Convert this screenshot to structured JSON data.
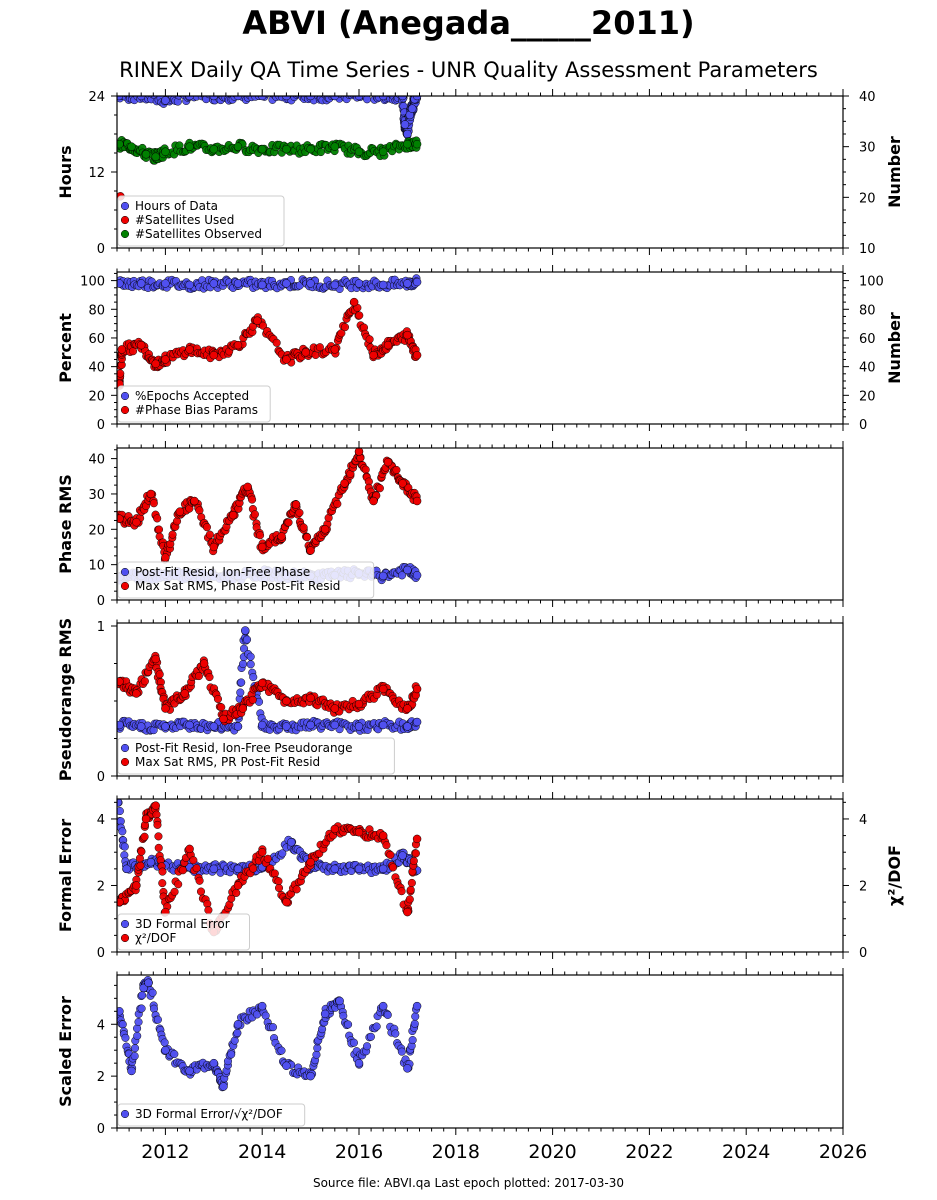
{
  "page": {
    "title": "ABVI (Anegada_____2011)",
    "subtitle": "RINEX Daily QA Time Series - UNR Quality Assessment Parameters",
    "footer": "Source file: ABVI.qa Last epoch plotted: 2017-03-30"
  },
  "colors": {
    "blue": "#5050f0",
    "red": "#ee0000",
    "green": "#008000"
  },
  "chart_data": [
    {
      "type": "scatter",
      "ylabel": "Hours",
      "ylabel_right": "Number",
      "ylim": [
        0,
        24
      ],
      "yticks": [
        0,
        12,
        24
      ],
      "ylim_right": [
        10,
        40
      ],
      "yticks_right": [
        10,
        20,
        30,
        40
      ],
      "xlim": [
        2011.0,
        2026.0
      ],
      "series": [
        {
          "name": "Hours of Data",
          "color": "blue",
          "axis": "left",
          "x": [
            2011.04,
            2011.5,
            2012.0,
            2012.5,
            2013.0,
            2013.5,
            2014.0,
            2014.5,
            2015.0,
            2015.5,
            2016.0,
            2016.5,
            2016.9,
            2016.95,
            2017.0,
            2017.05,
            2017.1,
            2017.15,
            2017.2
          ],
          "y": [
            24,
            24,
            23.3,
            24,
            24,
            24,
            24,
            24,
            24,
            24,
            24,
            24,
            24,
            19.5,
            18,
            21,
            22,
            23.5,
            24
          ]
        },
        {
          "name": "#Satellites Used",
          "color": "red",
          "axis": "right",
          "x": [
            2011.07
          ],
          "y": [
            20.2
          ]
        },
        {
          "name": "#Satellites Observed",
          "color": "green",
          "axis": "right",
          "x": [
            2011.05,
            2011.3,
            2011.6,
            2011.8,
            2012.0,
            2012.5,
            2013.0,
            2013.5,
            2014.0,
            2014.5,
            2015.0,
            2015.5,
            2016.0,
            2016.5,
            2017.0,
            2017.2
          ],
          "y": [
            30.5,
            30,
            28.5,
            28,
            29,
            30,
            29.5,
            30,
            29.5,
            29.5,
            29.5,
            30,
            29,
            29,
            30.5,
            30.5
          ]
        }
      ],
      "legend": {
        "placement": "lower-left",
        "entries": [
          "Hours of Data",
          "#Satellites Used",
          "#Satellites Observed"
        ]
      }
    },
    {
      "type": "scatter",
      "ylabel": "Percent",
      "ylabel_right": "Number",
      "ylim": [
        0,
        106
      ],
      "yticks": [
        0,
        20,
        40,
        60,
        80,
        100
      ],
      "ylim_right": [
        0,
        106
      ],
      "yticks_right": [
        0,
        20,
        40,
        60,
        80,
        100
      ],
      "xlim": [
        2011.0,
        2026.0
      ],
      "series": [
        {
          "name": "%Epochs Accepted",
          "color": "blue",
          "axis": "left",
          "x": [
            2011.05,
            2011.5,
            2012.0,
            2012.5,
            2013.0,
            2013.5,
            2014.0,
            2014.5,
            2015.0,
            2015.5,
            2016.0,
            2016.5,
            2017.0,
            2017.2
          ],
          "y": [
            98,
            98,
            98,
            97,
            98,
            98,
            97,
            98,
            98,
            97,
            98,
            97,
            98,
            99
          ]
        },
        {
          "name": "#Phase Bias Params",
          "color": "red",
          "axis": "right",
          "x": [
            2011.05,
            2011.1,
            2011.5,
            2011.8,
            2012.0,
            2012.5,
            2013.0,
            2013.5,
            2013.9,
            2014.5,
            2014.9,
            2015.5,
            2015.9,
            2016.3,
            2016.6,
            2017.0,
            2017.2
          ],
          "y": [
            28,
            52,
            55,
            42,
            45,
            52,
            48,
            55,
            72,
            45,
            50,
            52,
            85,
            48,
            55,
            62,
            48
          ]
        }
      ],
      "legend": {
        "placement": "lower-left",
        "entries": [
          "%Epochs Accepted",
          "#Phase Bias Params"
        ]
      }
    },
    {
      "type": "scatter",
      "ylabel": "Phase RMS",
      "ylim": [
        0,
        43
      ],
      "yticks": [
        0,
        10,
        20,
        30,
        40
      ],
      "xlim": [
        2011.0,
        2026.0
      ],
      "series": [
        {
          "name": "Post-Fit Resid, Ion-Free Phase",
          "color": "blue",
          "x": [
            2011.05,
            2011.5,
            2012.0,
            2012.5,
            2013.0,
            2013.5,
            2014.0,
            2014.5,
            2015.0,
            2015.5,
            2016.0,
            2016.5,
            2017.0,
            2017.2
          ],
          "y": [
            6.5,
            6.8,
            7.2,
            7.0,
            6.6,
            6.8,
            7.4,
            6.9,
            6.8,
            7.0,
            7.5,
            6.8,
            8.5,
            7.0
          ]
        },
        {
          "name": "Max Sat RMS, Phase Post-Fit Resid",
          "color": "red",
          "x": [
            2011.05,
            2011.4,
            2011.7,
            2012.0,
            2012.3,
            2012.6,
            2013.0,
            2013.4,
            2013.7,
            2014.0,
            2014.4,
            2014.7,
            2015.0,
            2015.3,
            2015.7,
            2016.0,
            2016.3,
            2016.6,
            2016.9,
            2017.2
          ],
          "y": [
            23,
            22,
            30,
            12,
            25,
            28,
            15,
            24,
            32,
            15,
            18,
            27,
            14,
            20,
            33,
            42,
            28,
            39,
            33,
            28
          ]
        }
      ],
      "legend": {
        "placement": "lower-left",
        "entries": [
          "Post-Fit Resid, Ion-Free Phase",
          "Max Sat RMS, Phase Post-Fit Resid"
        ]
      }
    },
    {
      "type": "scatter",
      "ylabel": "Pseudorange RMS",
      "ylim": [
        0,
        1.02
      ],
      "yticks": [
        0,
        1
      ],
      "xlim": [
        2011.0,
        2026.0
      ],
      "series": [
        {
          "name": "Post-Fit Resid, Ion-Free Pseudorange",
          "color": "blue",
          "x": [
            2011.05,
            2011.5,
            2012.0,
            2012.5,
            2013.0,
            2013.5,
            2013.65,
            2014.0,
            2014.5,
            2015.0,
            2015.5,
            2016.0,
            2016.5,
            2017.0,
            2017.2
          ],
          "y": [
            0.34,
            0.33,
            0.33,
            0.34,
            0.33,
            0.33,
            0.97,
            0.34,
            0.33,
            0.34,
            0.34,
            0.33,
            0.34,
            0.33,
            0.36
          ]
        },
        {
          "name": "Max Sat RMS, PR Post-Fit Resid",
          "color": "red",
          "x": [
            2011.05,
            2011.4,
            2011.8,
            2012.0,
            2012.4,
            2012.8,
            2013.2,
            2013.6,
            2014.0,
            2014.5,
            2015.0,
            2015.5,
            2016.0,
            2016.5,
            2017.0,
            2017.2
          ],
          "y": [
            0.63,
            0.55,
            0.78,
            0.45,
            0.55,
            0.75,
            0.38,
            0.45,
            0.62,
            0.5,
            0.52,
            0.45,
            0.48,
            0.58,
            0.45,
            0.58
          ]
        }
      ],
      "legend": {
        "placement": "lower-left",
        "entries": [
          "Post-Fit Resid, Ion-Free Pseudorange",
          "Max Sat RMS, PR Post-Fit Resid"
        ]
      }
    },
    {
      "type": "scatter",
      "ylabel": "Formal Error",
      "ylabel_right": "χ²/DOF",
      "ylim": [
        0,
        4.6
      ],
      "yticks": [
        0,
        2,
        4
      ],
      "ylim_right": [
        0,
        4.6
      ],
      "yticks_right": [
        0,
        2,
        4
      ],
      "xlim": [
        2011.0,
        2026.0
      ],
      "series": [
        {
          "name": "3D Formal Error",
          "color": "blue",
          "axis": "left",
          "x": [
            2011.02,
            2011.2,
            2011.7,
            2012.0,
            2012.5,
            2013.0,
            2013.5,
            2014.0,
            2014.6,
            2015.0,
            2015.5,
            2016.0,
            2016.5,
            2016.9,
            2017.2
          ],
          "y": [
            4.5,
            2.5,
            2.7,
            2.6,
            2.55,
            2.5,
            2.5,
            2.55,
            3.3,
            2.55,
            2.5,
            2.5,
            2.5,
            2.9,
            2.45
          ]
        },
        {
          "name": "χ²/DOF",
          "color": "red",
          "axis": "right",
          "x": [
            2011.05,
            2011.4,
            2011.6,
            2011.8,
            2012.0,
            2012.5,
            2013.0,
            2013.5,
            2014.0,
            2014.5,
            2015.0,
            2015.5,
            2016.0,
            2016.5,
            2017.0,
            2017.2
          ],
          "y": [
            1.5,
            2.0,
            4.0,
            4.4,
            1.2,
            3.1,
            0.6,
            2.0,
            3.0,
            1.5,
            2.7,
            3.7,
            3.6,
            3.5,
            1.2,
            3.4
          ]
        }
      ],
      "legend": {
        "placement": "lower-left",
        "entries": [
          "3D Formal Error",
          "χ²/DOF"
        ]
      }
    },
    {
      "type": "scatter",
      "ylabel": "Scaled Error",
      "ylim": [
        0,
        5.9
      ],
      "yticks": [
        0,
        2,
        4
      ],
      "xlim": [
        2011.0,
        2026.0
      ],
      "xticks": [
        2012,
        2014,
        2016,
        2018,
        2020,
        2022,
        2024,
        2026
      ],
      "series": [
        {
          "name": "3D Formal Error/√χ²/DOF",
          "color": "blue",
          "x": [
            2011.05,
            2011.3,
            2011.55,
            2011.65,
            2012.0,
            2012.5,
            2013.0,
            2013.2,
            2013.5,
            2014.0,
            2014.5,
            2015.0,
            2015.3,
            2015.6,
            2016.0,
            2016.5,
            2017.0,
            2017.2
          ],
          "y": [
            4.5,
            2.2,
            5.4,
            5.6,
            3.0,
            2.2,
            2.5,
            1.6,
            4.0,
            4.7,
            2.4,
            2.0,
            4.4,
            4.9,
            2.5,
            4.7,
            2.3,
            4.7
          ]
        }
      ],
      "legend": {
        "placement": "lower-left",
        "entries": [
          "3D Formal Error/√χ²/DOF"
        ]
      }
    }
  ]
}
